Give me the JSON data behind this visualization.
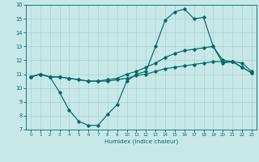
{
  "xlabel": "Humidex (Indice chaleur)",
  "bg_color": "#c8e8e8",
  "line_color": "#006868",
  "grid_color": "#a8d0d0",
  "xlim": [
    -0.5,
    23.5
  ],
  "ylim": [
    7,
    16
  ],
  "yticks": [
    7,
    8,
    9,
    10,
    11,
    12,
    13,
    14,
    15,
    16
  ],
  "xticks": [
    0,
    1,
    2,
    3,
    4,
    5,
    6,
    7,
    8,
    9,
    10,
    11,
    12,
    13,
    14,
    15,
    16,
    17,
    18,
    19,
    20,
    21,
    22,
    23
  ],
  "line1_x": [
    0,
    1,
    2,
    3,
    4,
    5,
    6,
    7,
    8,
    9,
    10,
    11,
    12,
    13,
    14,
    15,
    16,
    17,
    18,
    19,
    20,
    21,
    22,
    23
  ],
  "line1_y": [
    10.8,
    11.0,
    10.8,
    9.7,
    8.4,
    7.6,
    7.3,
    7.3,
    8.1,
    8.8,
    10.5,
    11.0,
    11.2,
    13.0,
    14.9,
    15.5,
    15.7,
    15.0,
    15.1,
    13.0,
    11.8,
    11.9,
    11.5,
    11.1
  ],
  "line2_x": [
    0,
    1,
    2,
    3,
    4,
    5,
    6,
    7,
    8,
    9,
    10,
    11,
    12,
    13,
    14,
    15,
    16,
    17,
    18,
    19,
    20,
    21,
    22,
    23
  ],
  "line2_y": [
    10.8,
    11.0,
    10.8,
    10.8,
    10.7,
    10.6,
    10.5,
    10.5,
    10.6,
    10.7,
    11.0,
    11.2,
    11.5,
    11.8,
    12.2,
    12.5,
    12.7,
    12.8,
    12.9,
    13.0,
    12.0,
    11.9,
    11.5,
    11.1
  ],
  "line3_x": [
    0,
    1,
    2,
    3,
    4,
    5,
    6,
    7,
    8,
    9,
    10,
    11,
    12,
    13,
    14,
    15,
    16,
    17,
    18,
    19,
    20,
    21,
    22,
    23
  ],
  "line3_y": [
    10.8,
    11.0,
    10.8,
    10.8,
    10.7,
    10.6,
    10.5,
    10.5,
    10.5,
    10.6,
    10.7,
    10.9,
    11.0,
    11.2,
    11.4,
    11.5,
    11.6,
    11.7,
    11.8,
    11.9,
    11.9,
    11.9,
    11.8,
    11.2
  ]
}
